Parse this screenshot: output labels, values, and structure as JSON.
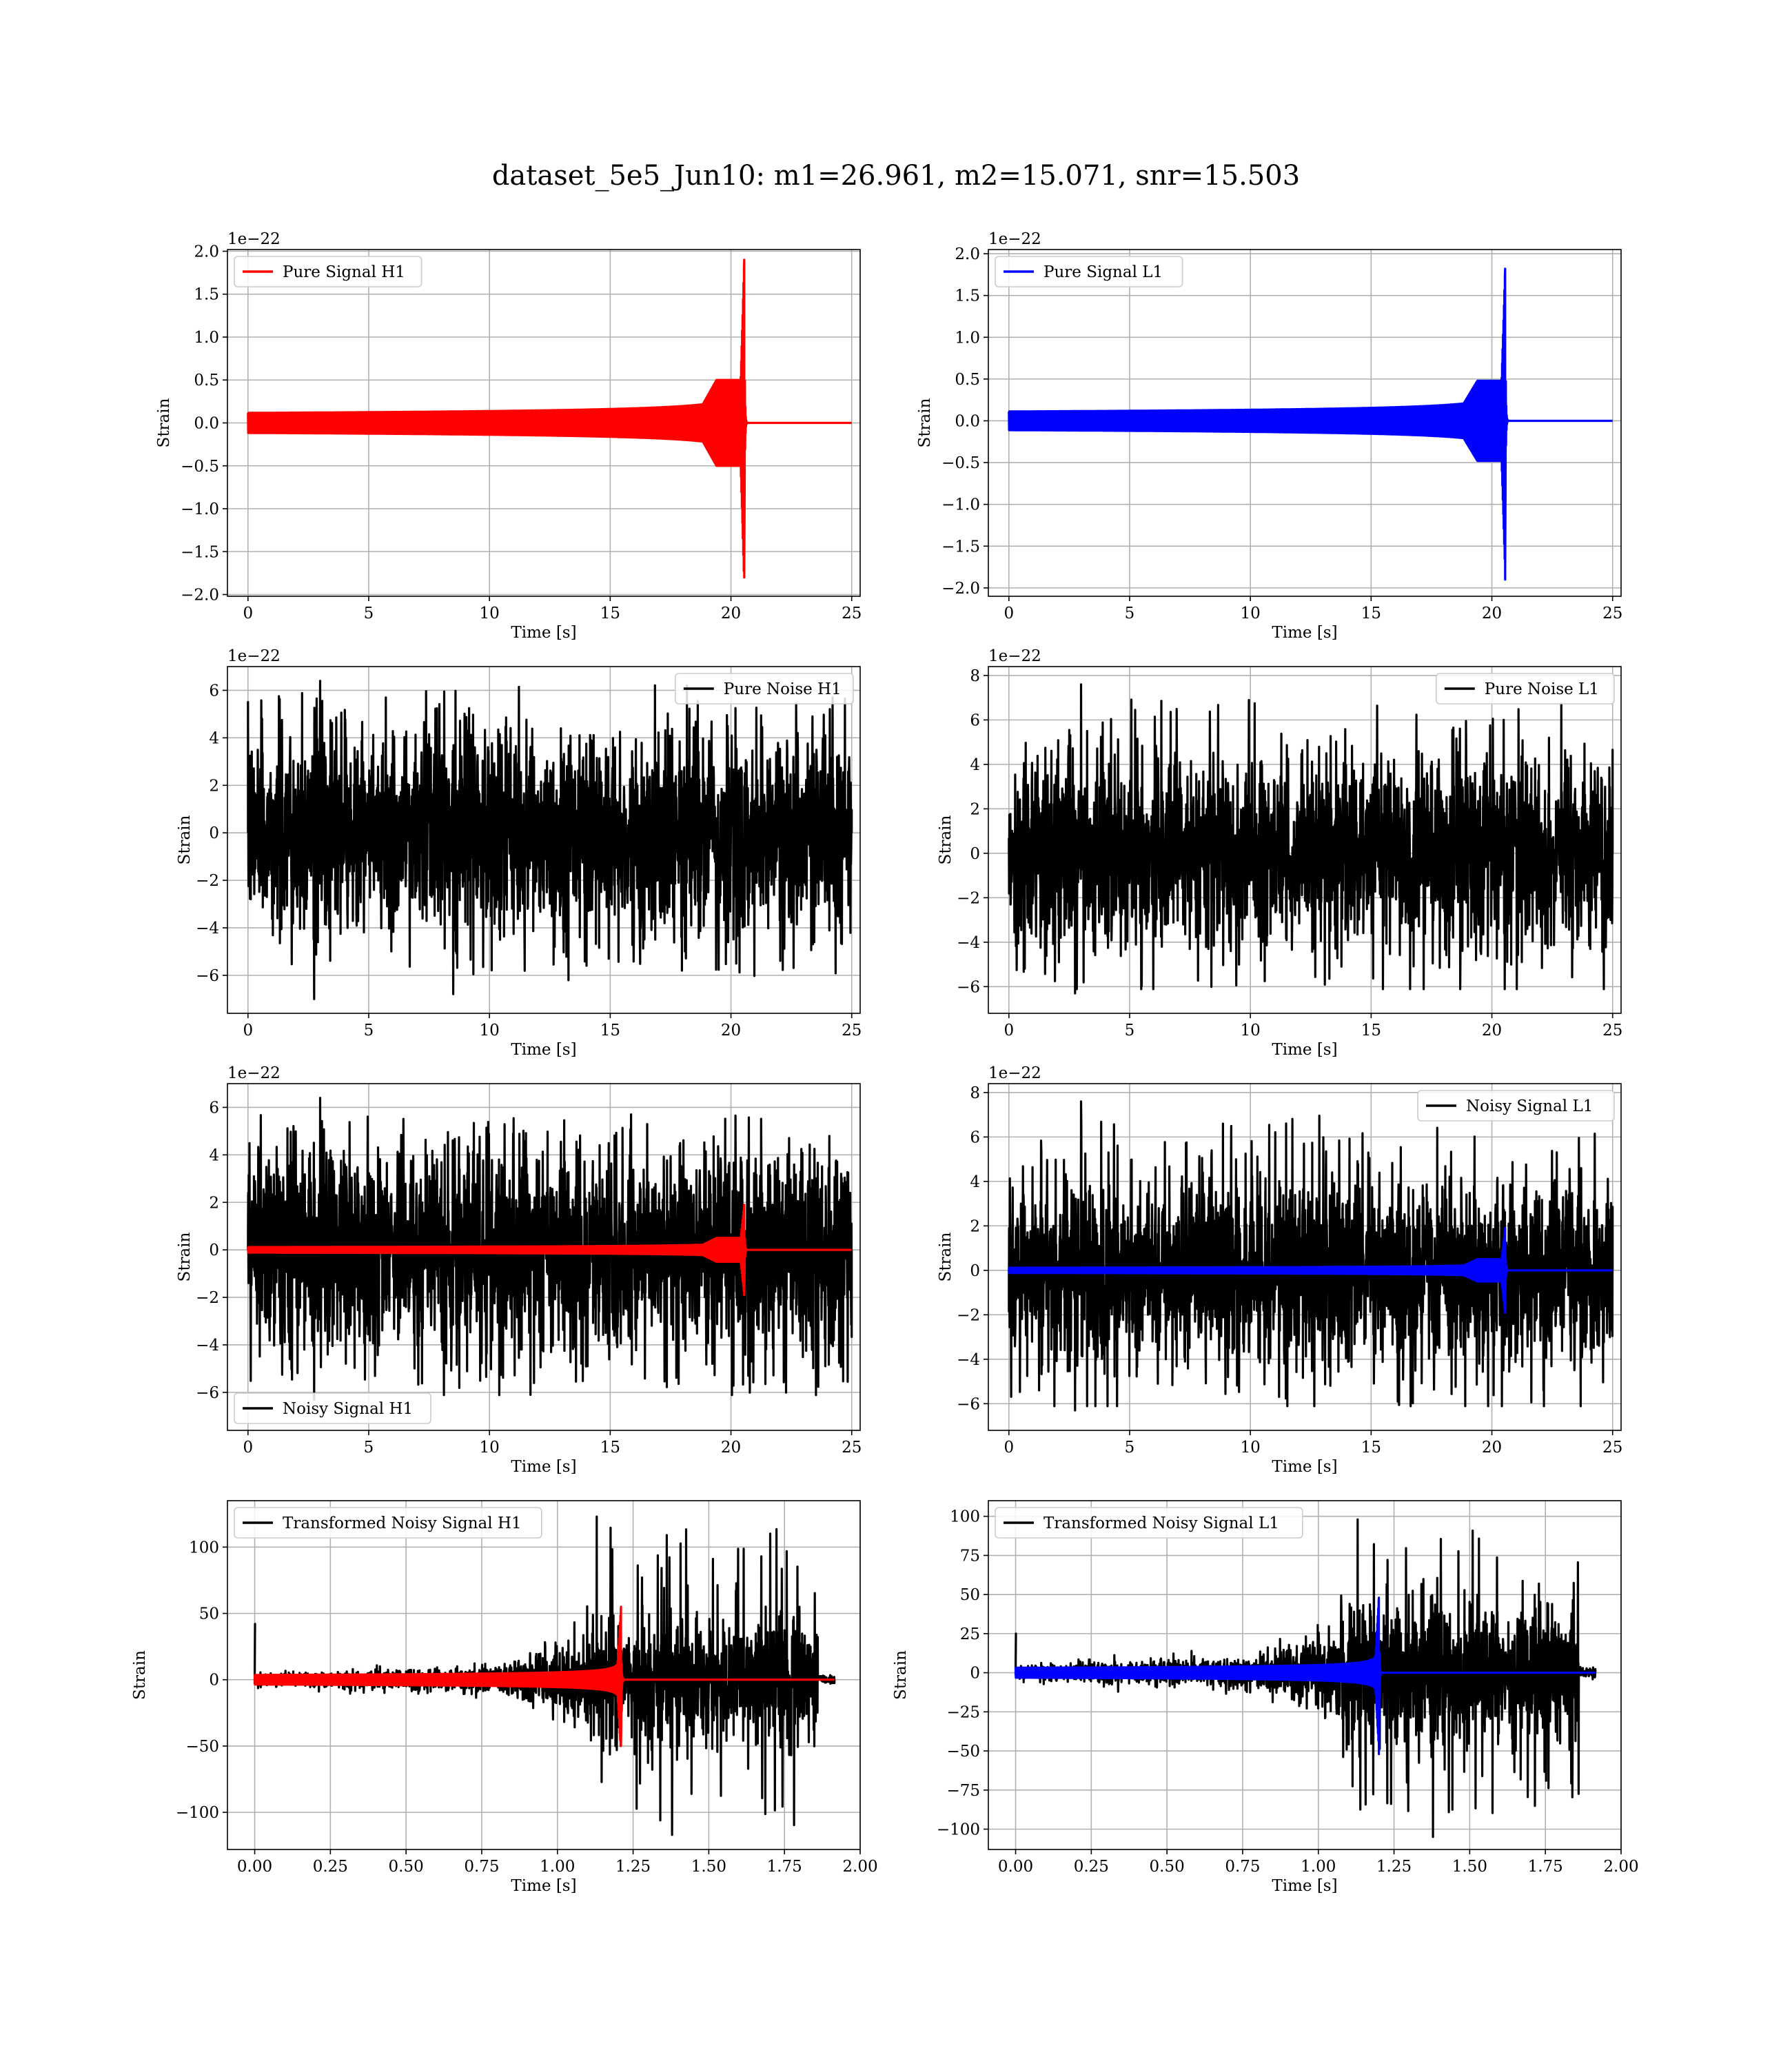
{
  "figure": {
    "title": "dataset_5e5_Jun10: m1=26.961, m2=15.071, snr=15.503"
  },
  "colors": {
    "h1": "#ff0000",
    "l1": "#0000ff",
    "noise": "#000000",
    "grid": "#b0b0b0"
  },
  "chart_data": [
    {
      "type": "line",
      "legend": [
        "Pure Signal H1"
      ],
      "legend_loc": "upper left",
      "xlabel": "Time [s]",
      "ylabel": "Strain",
      "xlim": [
        -0.85,
        25.35
      ],
      "ylim": [
        -2.02,
        2.02
      ],
      "xticks": [
        0,
        5,
        10,
        15,
        20,
        25
      ],
      "yticks": [
        -2.0,
        -1.5,
        -1.0,
        -0.5,
        0.0,
        0.5,
        1.0,
        1.5,
        2.0
      ],
      "ytick_decimals": 1,
      "offset_text": "1e−22",
      "grid": true,
      "series": [
        {
          "name": "Pure Signal H1",
          "kind": "chirp",
          "color": "#ff0000",
          "t_start": 0,
          "t_end": 25,
          "t_merger": 20.55,
          "peak_pos": 1.9,
          "peak_neg": -1.8,
          "plateau": 0.5,
          "plateau_start": 18.4
        }
      ]
    },
    {
      "type": "line",
      "legend": [
        "Pure Signal L1"
      ],
      "legend_loc": "upper left",
      "xlabel": "Time [s]",
      "ylabel": "Strain",
      "xlim": [
        -0.85,
        25.35
      ],
      "ylim": [
        -2.1,
        2.05
      ],
      "xticks": [
        0,
        5,
        10,
        15,
        20,
        25
      ],
      "yticks": [
        -2.0,
        -1.5,
        -1.0,
        -0.5,
        0.0,
        0.5,
        1.0,
        1.5,
        2.0
      ],
      "ytick_decimals": 1,
      "offset_text": "1e−22",
      "grid": true,
      "series": [
        {
          "name": "Pure Signal L1",
          "kind": "chirp",
          "color": "#0000ff",
          "t_start": 0,
          "t_end": 25,
          "t_merger": 20.55,
          "peak_pos": 1.82,
          "peak_neg": -1.9,
          "plateau": 0.48,
          "plateau_start": 18.4
        }
      ]
    },
    {
      "type": "line",
      "legend": [
        "Pure Noise H1"
      ],
      "legend_loc": "upper right",
      "xlabel": "Time [s]",
      "ylabel": "Strain",
      "xlim": [
        -0.85,
        25.35
      ],
      "ylim": [
        -7.6,
        7.0
      ],
      "xticks": [
        0,
        5,
        10,
        15,
        20,
        25
      ],
      "yticks": [
        -6,
        -4,
        -2,
        0,
        2,
        4,
        6
      ],
      "ytick_decimals": 0,
      "offset_text": "1e−22",
      "grid": true,
      "series": [
        {
          "name": "Pure Noise H1",
          "kind": "noise",
          "color": "#000000",
          "t_start": 0,
          "t_end": 25,
          "band": 3.2,
          "max_spike": 6.4,
          "min_spike": -7.0
        }
      ]
    },
    {
      "type": "line",
      "legend": [
        "Pure Noise L1"
      ],
      "legend_loc": "upper right",
      "xlabel": "Time [s]",
      "ylabel": "Strain",
      "xlim": [
        -0.85,
        25.35
      ],
      "ylim": [
        -7.2,
        8.4
      ],
      "xticks": [
        0,
        5,
        10,
        15,
        20,
        25
      ],
      "yticks": [
        -6,
        -4,
        -2,
        0,
        2,
        4,
        6,
        8
      ],
      "ytick_decimals": 0,
      "offset_text": "1e−22",
      "grid": true,
      "series": [
        {
          "name": "Pure Noise L1",
          "kind": "noise",
          "color": "#000000",
          "t_start": 0,
          "t_end": 25,
          "band": 3.2,
          "max_spike": 7.6,
          "min_spike": -6.3
        }
      ]
    },
    {
      "type": "line",
      "legend": [
        "Noisy Signal H1"
      ],
      "legend_loc": "lower left",
      "xlabel": "Time [s]",
      "ylabel": "Strain",
      "xlim": [
        -0.85,
        25.35
      ],
      "ylim": [
        -7.6,
        7.0
      ],
      "xticks": [
        0,
        5,
        10,
        15,
        20,
        25
      ],
      "yticks": [
        -6,
        -4,
        -2,
        0,
        2,
        4,
        6
      ],
      "ytick_decimals": 0,
      "offset_text": "1e−22",
      "grid": true,
      "series": [
        {
          "name": "Noisy Signal H1",
          "kind": "noise",
          "color": "#000000",
          "t_start": 0,
          "t_end": 25,
          "band": 3.2,
          "max_spike": 6.4,
          "min_spike": -6.3
        },
        {
          "name": "",
          "kind": "chirp",
          "color": "#ff0000",
          "t_start": 0,
          "t_end": 25,
          "t_merger": 20.55,
          "peak_pos": 1.9,
          "peak_neg": -1.9,
          "plateau": 0.5,
          "plateau_start": 18.4
        }
      ]
    },
    {
      "type": "line",
      "legend": [
        "Noisy Signal L1"
      ],
      "legend_loc": "upper right",
      "xlabel": "Time [s]",
      "ylabel": "Strain",
      "xlim": [
        -0.85,
        25.35
      ],
      "ylim": [
        -7.2,
        8.4
      ],
      "xticks": [
        0,
        5,
        10,
        15,
        20,
        25
      ],
      "yticks": [
        -6,
        -4,
        -2,
        0,
        2,
        4,
        6,
        8
      ],
      "ytick_decimals": 0,
      "offset_text": "1e−22",
      "grid": true,
      "series": [
        {
          "name": "Noisy Signal L1",
          "kind": "noise",
          "color": "#000000",
          "t_start": 0,
          "t_end": 25,
          "band": 3.2,
          "max_spike": 7.6,
          "min_spike": -6.3
        },
        {
          "name": "",
          "kind": "chirp",
          "color": "#0000ff",
          "t_start": 0,
          "t_end": 25,
          "t_merger": 20.55,
          "peak_pos": 1.9,
          "peak_neg": -1.9,
          "plateau": 0.5,
          "plateau_start": 18.4
        }
      ]
    },
    {
      "type": "line",
      "legend": [
        "Transformed Noisy Signal H1"
      ],
      "legend_loc": "upper left",
      "xlabel": "Time [s]",
      "ylabel": "Strain",
      "xlim": [
        -0.09,
        2.0
      ],
      "ylim": [
        -128,
        135
      ],
      "xticks": [
        0.0,
        0.25,
        0.5,
        0.75,
        1.0,
        1.25,
        1.5,
        1.75,
        2.0
      ],
      "yticks": [
        -100,
        -50,
        0,
        50,
        100
      ],
      "xtick_decimals": 2,
      "ytick_decimals": 0,
      "offset_text": "",
      "grid": true,
      "series": [
        {
          "name": "Transformed Noisy Signal H1",
          "kind": "whitened",
          "color": "#000000",
          "t_start": 0,
          "t_end": 1.915,
          "t_merger": 1.21,
          "max_spike": 123,
          "min_spike": -117,
          "initial_spike": 42
        },
        {
          "name": "",
          "kind": "chirp",
          "color": "#ff0000",
          "t_start": 0,
          "t_end": 1.915,
          "t_merger": 1.21,
          "peak_pos": 55,
          "peak_neg": -50,
          "plateau": 0,
          "plateau_start": 1.2
        }
      ]
    },
    {
      "type": "line",
      "legend": [
        "Transformed Noisy Signal L1"
      ],
      "legend_loc": "upper left",
      "xlabel": "Time [s]",
      "ylabel": "Strain",
      "xlim": [
        -0.09,
        2.0
      ],
      "ylim": [
        -113,
        110
      ],
      "xticks": [
        0.0,
        0.25,
        0.5,
        0.75,
        1.0,
        1.25,
        1.5,
        1.75,
        2.0
      ],
      "yticks": [
        -100,
        -75,
        -50,
        -25,
        0,
        25,
        50,
        75,
        100
      ],
      "xtick_decimals": 2,
      "ytick_decimals": 0,
      "offset_text": "",
      "grid": true,
      "series": [
        {
          "name": "Transformed Noisy Signal L1",
          "kind": "whitened",
          "color": "#000000",
          "t_start": 0,
          "t_end": 1.915,
          "t_merger": 1.2,
          "max_spike": 98,
          "min_spike": -105,
          "initial_spike": 25
        },
        {
          "name": "",
          "kind": "chirp",
          "color": "#0000ff",
          "t_start": 0,
          "t_end": 1.915,
          "t_merger": 1.2,
          "peak_pos": 48,
          "peak_neg": -52,
          "plateau": 0,
          "plateau_start": 1.2
        }
      ]
    }
  ]
}
